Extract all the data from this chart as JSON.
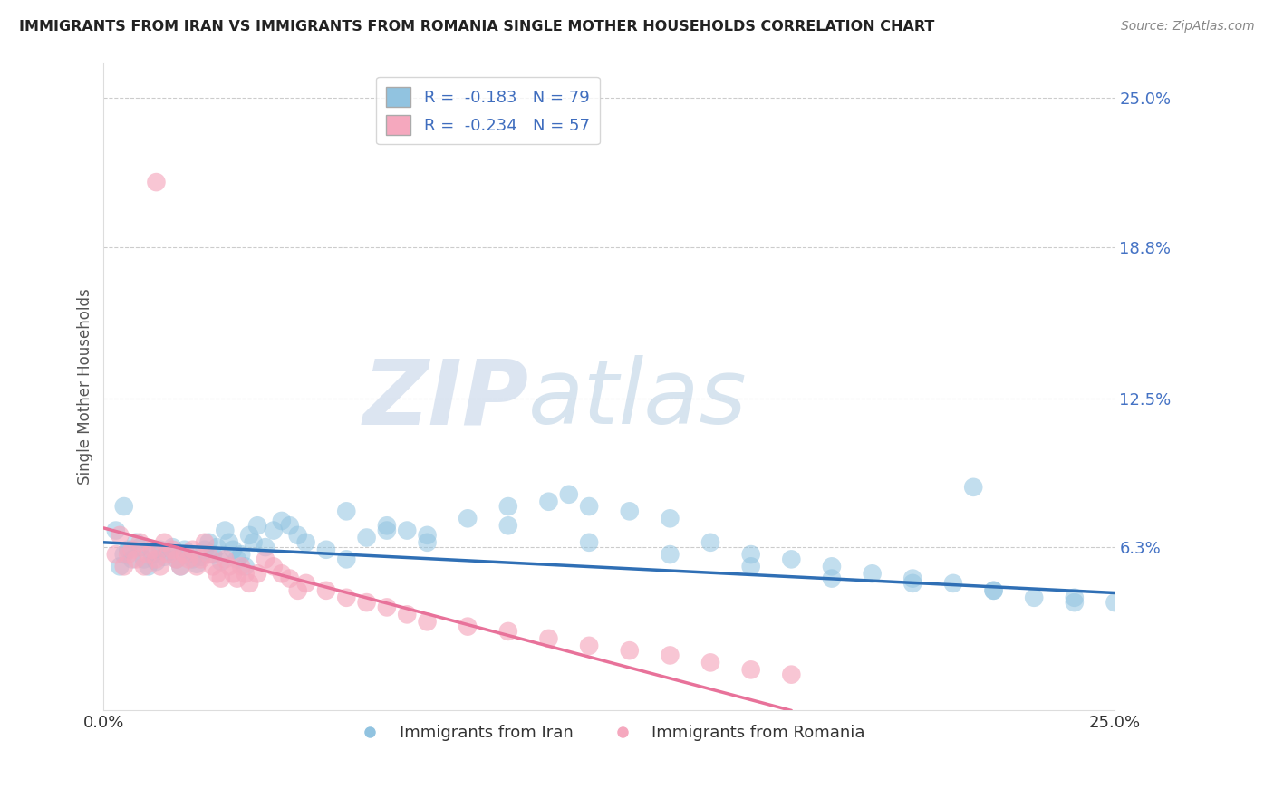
{
  "title": "IMMIGRANTS FROM IRAN VS IMMIGRANTS FROM ROMANIA SINGLE MOTHER HOUSEHOLDS CORRELATION CHART",
  "source": "Source: ZipAtlas.com",
  "ylabel": "Single Mother Households",
  "ytick_labels": [
    "6.3%",
    "12.5%",
    "18.8%",
    "25.0%"
  ],
  "ytick_values": [
    0.063,
    0.125,
    0.188,
    0.25
  ],
  "xmin": 0.0,
  "xmax": 0.25,
  "ymin": -0.005,
  "ymax": 0.265,
  "iran_color": "#91C3E0",
  "romania_color": "#F5A8BE",
  "iran_R": -0.183,
  "iran_N": 79,
  "romania_R": -0.234,
  "romania_N": 57,
  "iran_line_color": "#2F6FB5",
  "romania_line_color": "#E8729A",
  "watermark_zip": "ZIP",
  "watermark_atlas": "atlas",
  "legend_label_iran": "Immigrants from Iran",
  "legend_label_romania": "Immigrants from Romania",
  "iran_line_x0": 0.0,
  "iran_line_y0": 0.065,
  "iran_line_x1": 0.25,
  "iran_line_y1": 0.044,
  "romania_line_x0": 0.0,
  "romania_line_y0": 0.071,
  "romania_line_x1": 0.17,
  "romania_line_y1": -0.005,
  "iran_points_x": [
    0.003,
    0.004,
    0.005,
    0.006,
    0.007,
    0.008,
    0.009,
    0.01,
    0.011,
    0.012,
    0.013,
    0.014,
    0.015,
    0.016,
    0.017,
    0.018,
    0.019,
    0.02,
    0.021,
    0.022,
    0.023,
    0.024,
    0.025,
    0.026,
    0.027,
    0.028,
    0.029,
    0.03,
    0.031,
    0.032,
    0.033,
    0.034,
    0.035,
    0.036,
    0.037,
    0.038,
    0.04,
    0.042,
    0.044,
    0.046,
    0.048,
    0.05,
    0.055,
    0.06,
    0.065,
    0.07,
    0.075,
    0.08,
    0.09,
    0.1,
    0.11,
    0.115,
    0.12,
    0.13,
    0.14,
    0.15,
    0.16,
    0.17,
    0.18,
    0.19,
    0.2,
    0.21,
    0.215,
    0.22,
    0.23,
    0.24,
    0.06,
    0.07,
    0.08,
    0.1,
    0.12,
    0.14,
    0.16,
    0.18,
    0.2,
    0.22,
    0.24,
    0.25,
    0.005
  ],
  "iran_points_y": [
    0.07,
    0.055,
    0.06,
    0.062,
    0.058,
    0.065,
    0.063,
    0.058,
    0.055,
    0.06,
    0.057,
    0.062,
    0.059,
    0.061,
    0.063,
    0.058,
    0.055,
    0.062,
    0.06,
    0.058,
    0.056,
    0.059,
    0.062,
    0.065,
    0.06,
    0.063,
    0.057,
    0.07,
    0.065,
    0.062,
    0.058,
    0.06,
    0.055,
    0.068,
    0.065,
    0.072,
    0.063,
    0.07,
    0.074,
    0.072,
    0.068,
    0.065,
    0.062,
    0.058,
    0.067,
    0.072,
    0.07,
    0.065,
    0.075,
    0.08,
    0.082,
    0.085,
    0.08,
    0.078,
    0.075,
    0.065,
    0.06,
    0.058,
    0.055,
    0.052,
    0.05,
    0.048,
    0.088,
    0.045,
    0.042,
    0.04,
    0.078,
    0.07,
    0.068,
    0.072,
    0.065,
    0.06,
    0.055,
    0.05,
    0.048,
    0.045,
    0.042,
    0.04,
    0.08
  ],
  "romania_points_x": [
    0.003,
    0.004,
    0.005,
    0.006,
    0.007,
    0.008,
    0.009,
    0.01,
    0.011,
    0.012,
    0.013,
    0.014,
    0.015,
    0.016,
    0.017,
    0.018,
    0.019,
    0.02,
    0.021,
    0.022,
    0.023,
    0.024,
    0.025,
    0.026,
    0.027,
    0.028,
    0.029,
    0.03,
    0.031,
    0.032,
    0.033,
    0.034,
    0.035,
    0.036,
    0.038,
    0.04,
    0.042,
    0.044,
    0.046,
    0.048,
    0.05,
    0.055,
    0.06,
    0.065,
    0.07,
    0.075,
    0.08,
    0.09,
    0.1,
    0.11,
    0.12,
    0.13,
    0.14,
    0.15,
    0.16,
    0.17,
    0.013
  ],
  "romania_points_y": [
    0.06,
    0.068,
    0.055,
    0.06,
    0.062,
    0.058,
    0.065,
    0.055,
    0.06,
    0.062,
    0.058,
    0.055,
    0.065,
    0.06,
    0.062,
    0.058,
    0.055,
    0.06,
    0.058,
    0.062,
    0.055,
    0.058,
    0.065,
    0.06,
    0.055,
    0.052,
    0.05,
    0.058,
    0.055,
    0.052,
    0.05,
    0.055,
    0.052,
    0.048,
    0.052,
    0.058,
    0.055,
    0.052,
    0.05,
    0.045,
    0.048,
    0.045,
    0.042,
    0.04,
    0.038,
    0.035,
    0.032,
    0.03,
    0.028,
    0.025,
    0.022,
    0.02,
    0.018,
    0.015,
    0.012,
    0.01,
    0.215
  ]
}
